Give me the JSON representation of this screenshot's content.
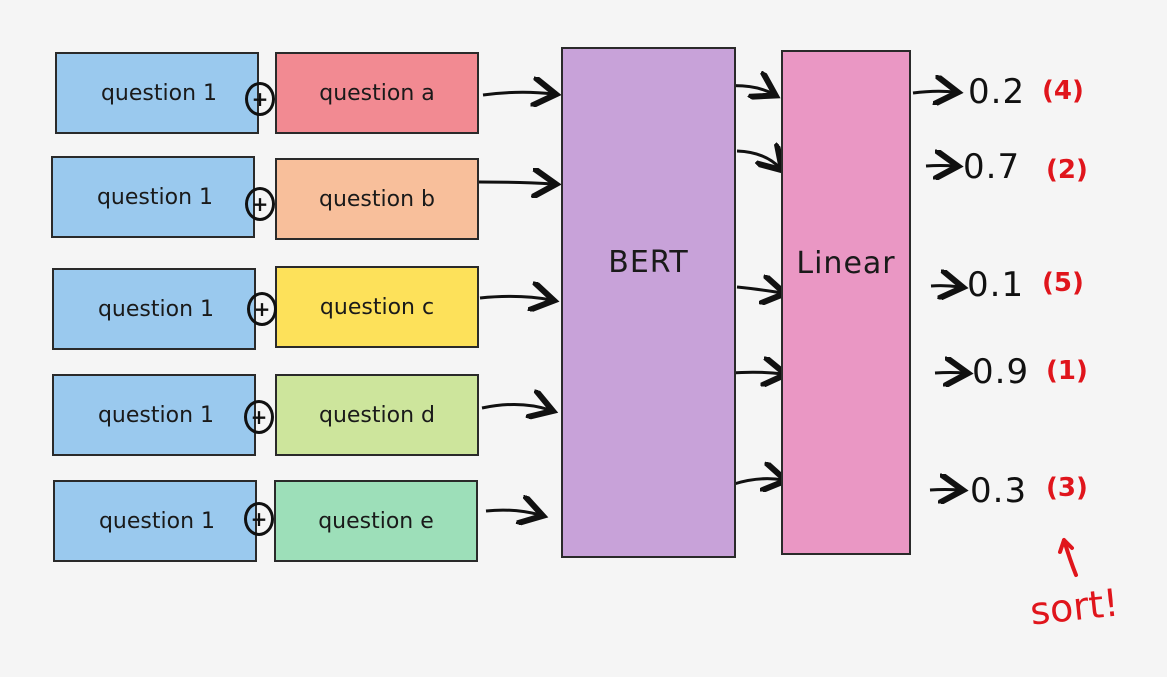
{
  "left_label": "question 1",
  "pairs": [
    {
      "label": "question a",
      "color": "#f28a92"
    },
    {
      "label": "question b",
      "color": "#f8bf9b"
    },
    {
      "label": "question c",
      "color": "#fde15a"
    },
    {
      "label": "question d",
      "color": "#cde59c"
    },
    {
      "label": "question e",
      "color": "#9ddfb9"
    }
  ],
  "plus_symbol": "+",
  "bert_label": "BERT",
  "linear_label": "Linear",
  "scores": [
    {
      "value": "0.2",
      "rank": "(4)"
    },
    {
      "value": "0.7",
      "rank": "(2)"
    },
    {
      "value": "0.1",
      "rank": "(5)"
    },
    {
      "value": "0.9",
      "rank": "(1)"
    },
    {
      "value": "0.3",
      "rank": "(3)"
    }
  ],
  "sort_label": "sort!",
  "colors": {
    "question1": "#9ac9ee",
    "bert": "#c8a2d9",
    "linear": "#ea97c4",
    "annotation": "#e0151c",
    "stroke": "#2a2a2a",
    "background": "#f5f5f5"
  }
}
